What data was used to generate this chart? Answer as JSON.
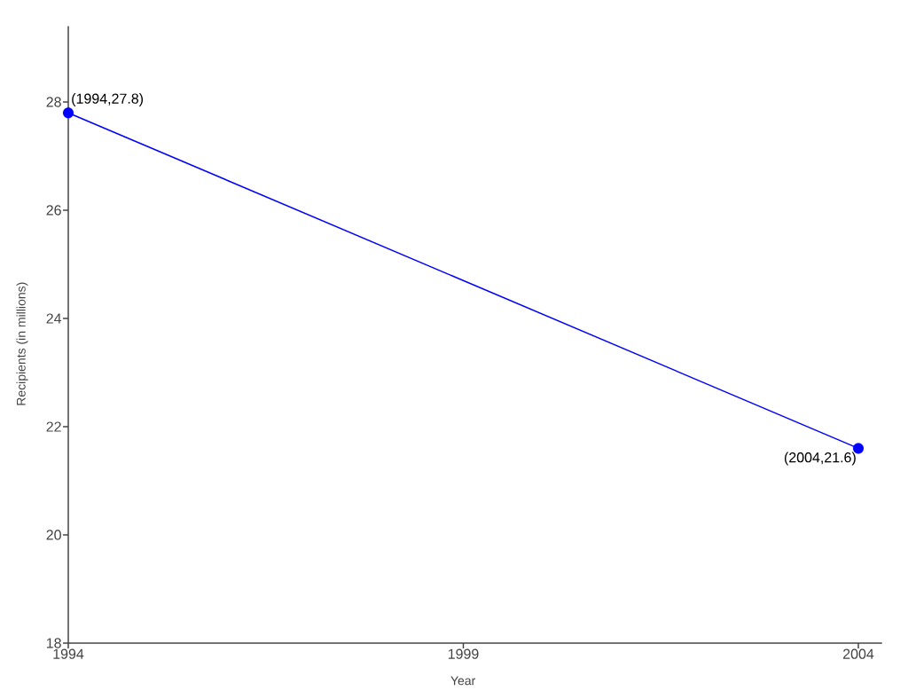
{
  "chart_data": {
    "type": "line",
    "xlabel": "Year",
    "ylabel": "Recipients (in millions)",
    "x": [
      1994,
      2004
    ],
    "values": [
      27.8,
      21.6
    ],
    "color": "#0000ff",
    "marker": "circle",
    "line_style": "solid",
    "value_labels": [
      "(1994,27.8)",
      "(2004,21.6)"
    ],
    "xlim": [
      1994,
      2004.3
    ],
    "ylim": [
      18,
      29.4
    ],
    "xticks": [
      1994,
      1999,
      2004
    ],
    "yticks": [
      18,
      20,
      22,
      24,
      26,
      28
    ]
  }
}
